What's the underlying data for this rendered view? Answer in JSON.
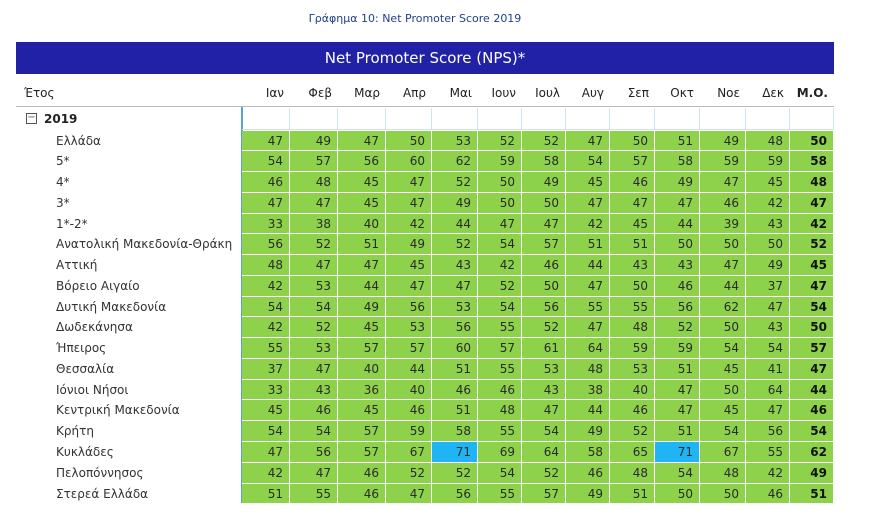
{
  "caption": "Γράφημα 10: Net Promoter Score 2019",
  "banner": {
    "title": "Net Promoter Score (NPS)*",
    "color": "#2121a6"
  },
  "table": {
    "header": [
      "Έτος",
      "Ιαν",
      "Φεβ",
      "Μαρ",
      "Απρ",
      "Μαι",
      "Ιουν",
      "Ιουλ",
      "Αυγ",
      "Σεπ",
      "Οκτ",
      "Νοε",
      "Δεκ",
      "Μ.Ο."
    ],
    "group": "2019",
    "cell_color": "#8ed24c",
    "highlight_color": "#1fb4f4",
    "rows": [
      {
        "label": "Ελλάδα",
        "values": [
          47,
          49,
          47,
          50,
          53,
          52,
          52,
          47,
          50,
          51,
          49,
          48
        ],
        "average": 50
      },
      {
        "label": "5*",
        "values": [
          54,
          57,
          56,
          60,
          62,
          59,
          58,
          54,
          57,
          58,
          59,
          59
        ],
        "average": 58
      },
      {
        "label": "4*",
        "values": [
          46,
          48,
          45,
          47,
          52,
          50,
          49,
          45,
          46,
          49,
          47,
          45
        ],
        "average": 48
      },
      {
        "label": "3*",
        "values": [
          47,
          47,
          45,
          47,
          49,
          50,
          50,
          47,
          47,
          47,
          46,
          42
        ],
        "average": 47
      },
      {
        "label": "1*-2*",
        "values": [
          33,
          38,
          40,
          42,
          44,
          47,
          47,
          42,
          45,
          44,
          39,
          43
        ],
        "average": 42
      },
      {
        "label": "Ανατολική Μακεδονία-Θράκη",
        "values": [
          56,
          52,
          51,
          49,
          52,
          54,
          57,
          51,
          51,
          50,
          50,
          50
        ],
        "average": 52
      },
      {
        "label": "Αττική",
        "values": [
          48,
          47,
          47,
          45,
          43,
          42,
          46,
          44,
          43,
          43,
          47,
          49
        ],
        "average": 45
      },
      {
        "label": "Βόρειο Αιγαίο",
        "values": [
          42,
          53,
          44,
          47,
          47,
          52,
          50,
          47,
          50,
          46,
          44,
          37
        ],
        "average": 47
      },
      {
        "label": "Δυτική Μακεδονία",
        "values": [
          54,
          54,
          49,
          56,
          53,
          54,
          56,
          55,
          55,
          56,
          62,
          47
        ],
        "average": 54
      },
      {
        "label": "Δωδεκάνησα",
        "values": [
          42,
          52,
          45,
          53,
          56,
          55,
          52,
          47,
          48,
          52,
          50,
          43
        ],
        "average": 50
      },
      {
        "label": "Ήπειρος",
        "values": [
          55,
          53,
          57,
          57,
          60,
          57,
          61,
          64,
          59,
          59,
          54,
          54
        ],
        "average": 57
      },
      {
        "label": "Θεσσαλία",
        "values": [
          37,
          47,
          40,
          44,
          51,
          55,
          53,
          48,
          53,
          51,
          45,
          41
        ],
        "average": 47
      },
      {
        "label": "Ιόνιοι Νήσοι",
        "values": [
          33,
          43,
          36,
          40,
          46,
          46,
          43,
          38,
          40,
          47,
          50,
          64
        ],
        "average": 44
      },
      {
        "label": "Κεντρική Μακεδονία",
        "values": [
          45,
          46,
          45,
          46,
          51,
          48,
          47,
          44,
          46,
          47,
          45,
          47
        ],
        "average": 46
      },
      {
        "label": "Κρήτη",
        "values": [
          54,
          54,
          57,
          59,
          58,
          55,
          54,
          49,
          52,
          51,
          54,
          56
        ],
        "average": 54
      },
      {
        "label": "Κυκλάδες",
        "values": [
          47,
          56,
          57,
          67,
          71,
          69,
          64,
          58,
          65,
          71,
          67,
          55
        ],
        "average": 62
      },
      {
        "label": "Πελοπόννησος",
        "values": [
          42,
          47,
          46,
          52,
          52,
          54,
          52,
          46,
          48,
          54,
          48,
          42
        ],
        "average": 49
      },
      {
        "label": "Στερεά Ελλάδα",
        "values": [
          51,
          55,
          46,
          47,
          56,
          55,
          57,
          49,
          51,
          50,
          50,
          46
        ],
        "average": 51
      }
    ]
  }
}
